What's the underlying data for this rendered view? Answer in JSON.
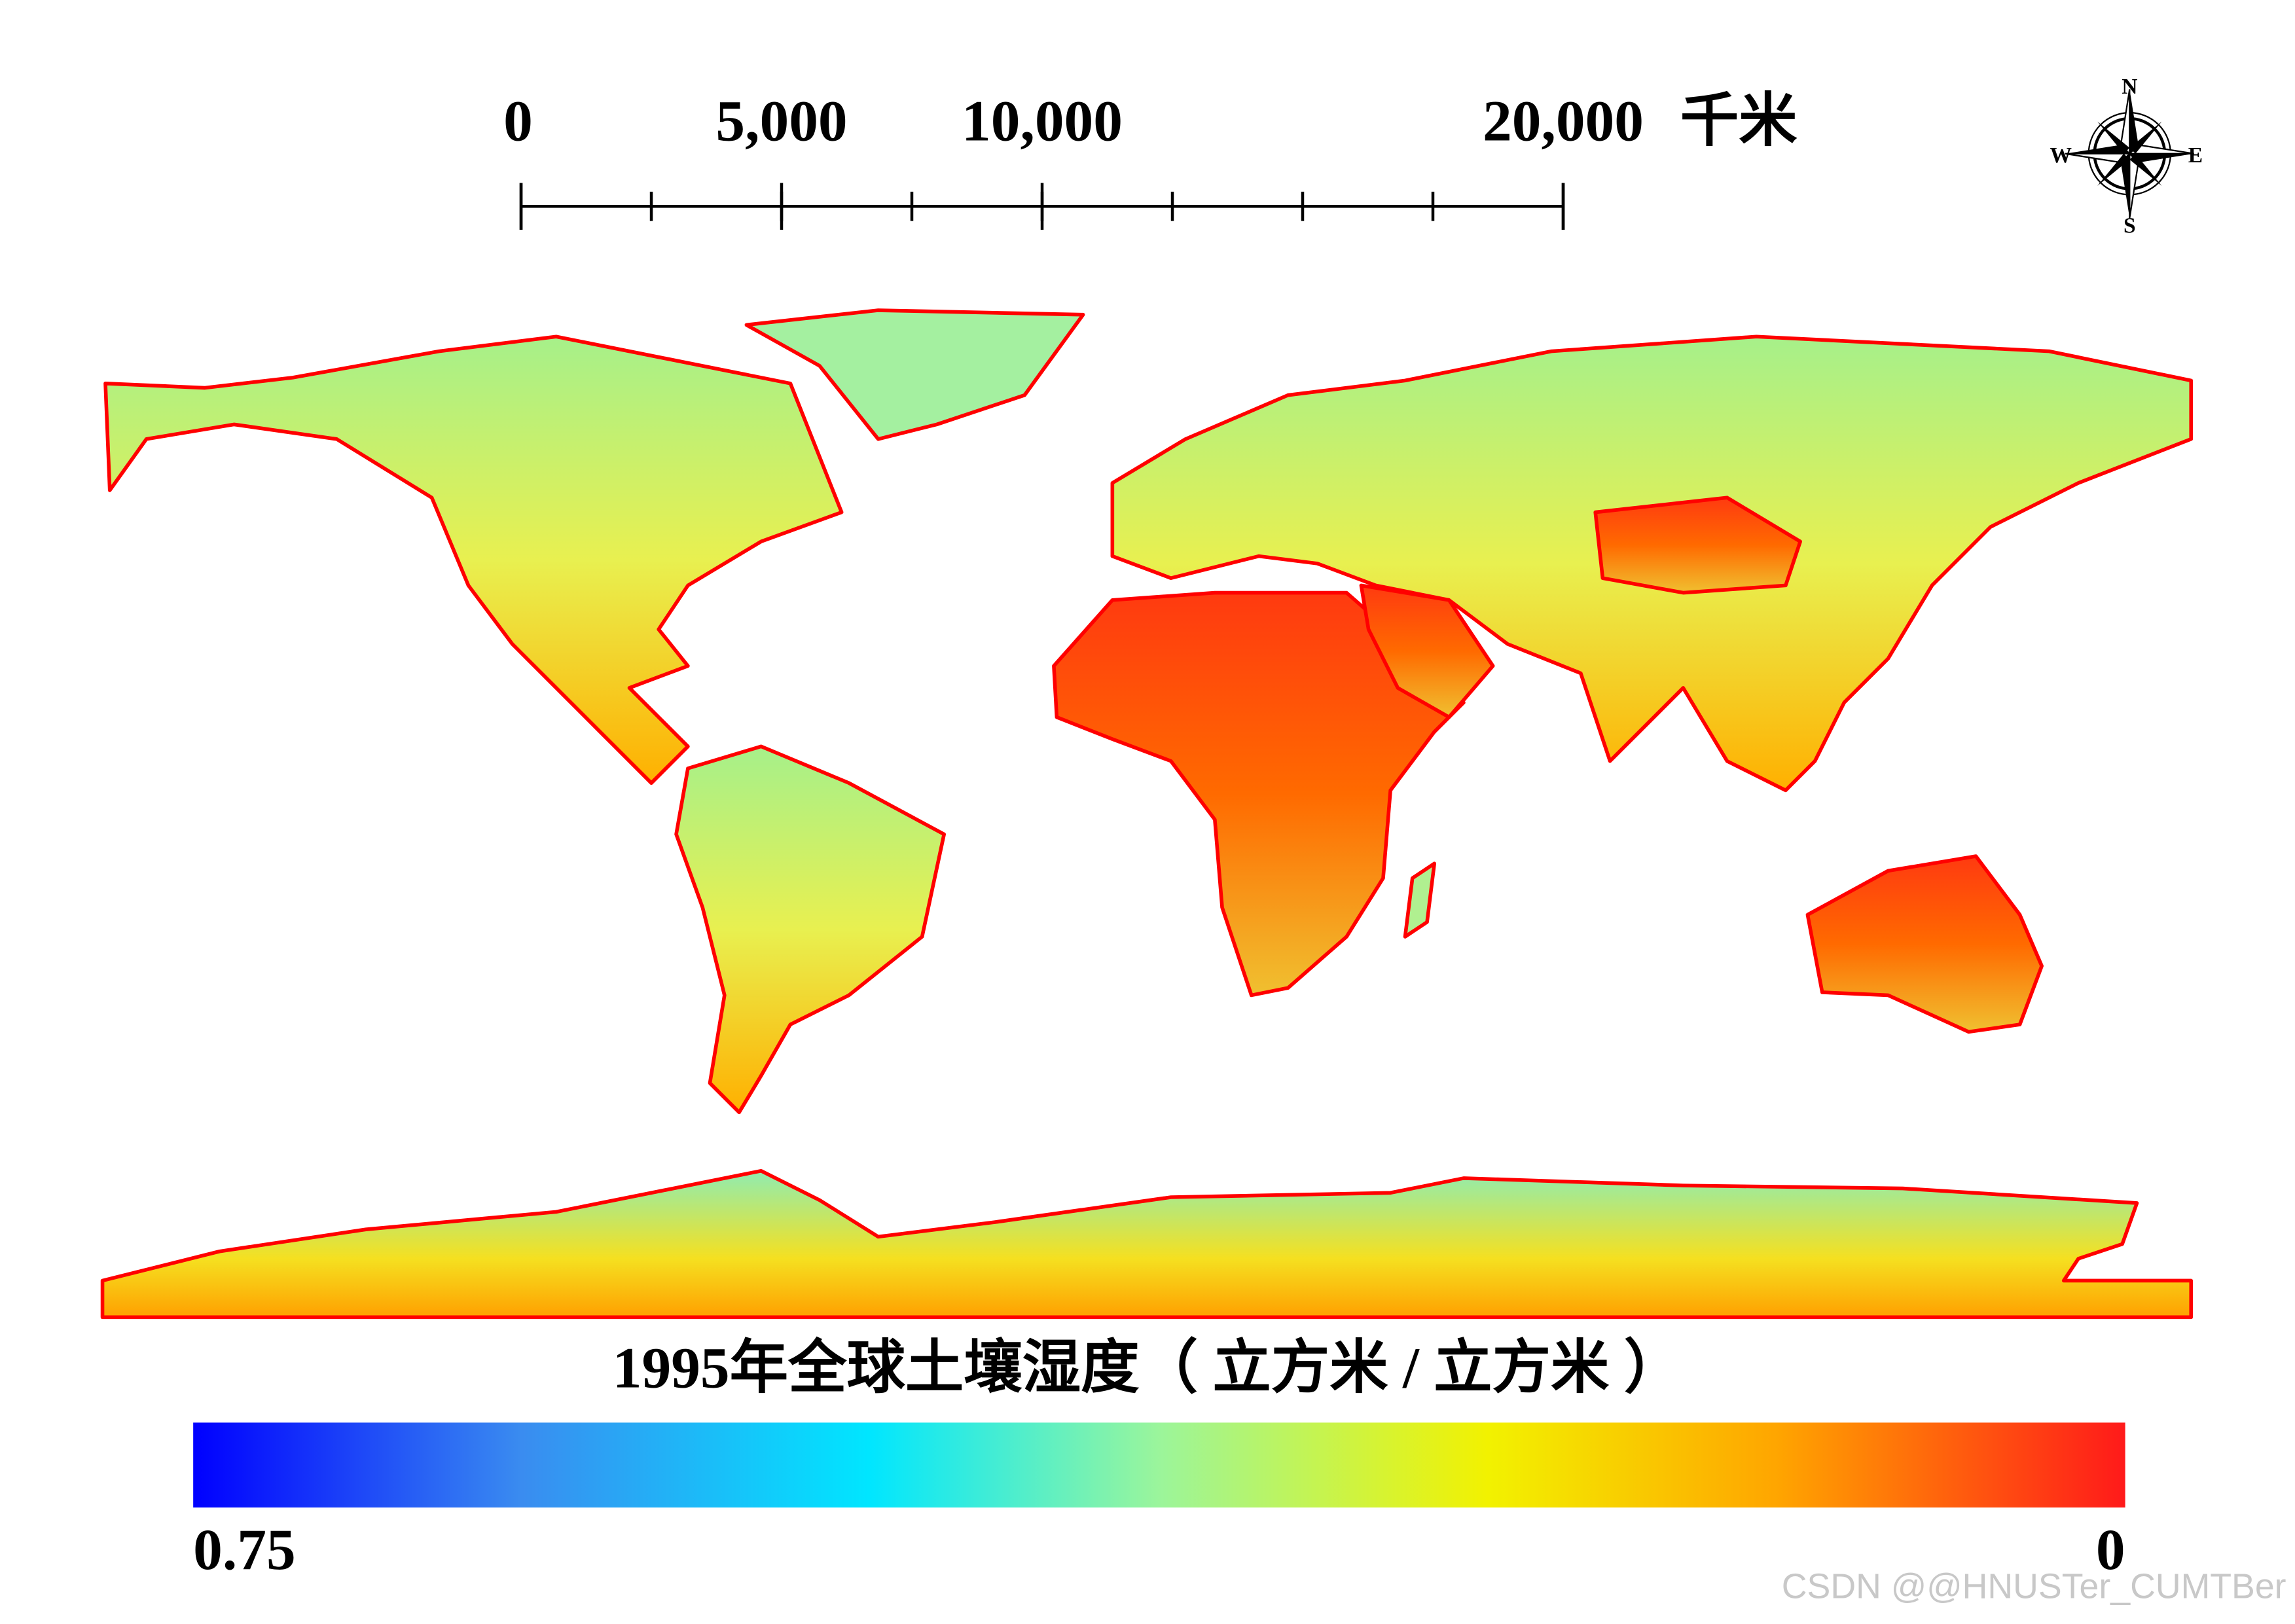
{
  "scale_bar": {
    "max": 20000,
    "ticks": [
      {
        "value": 0,
        "label": "0"
      },
      {
        "value": 5000,
        "label": "5,000"
      },
      {
        "value": 10000,
        "label": "10,000"
      },
      {
        "value": 20000,
        "label": "20,000"
      }
    ],
    "unit": "千米"
  },
  "compass": {
    "north": "N",
    "east": "E",
    "south": "S",
    "west": "W"
  },
  "title": "1995年全球土壤湿度（ 立方米 / 立方米 ）",
  "colorbar": {
    "high_label": "0.75",
    "low_label": "0"
  },
  "watermark": "CSDN @@HNUSTer_CUMTBer"
}
